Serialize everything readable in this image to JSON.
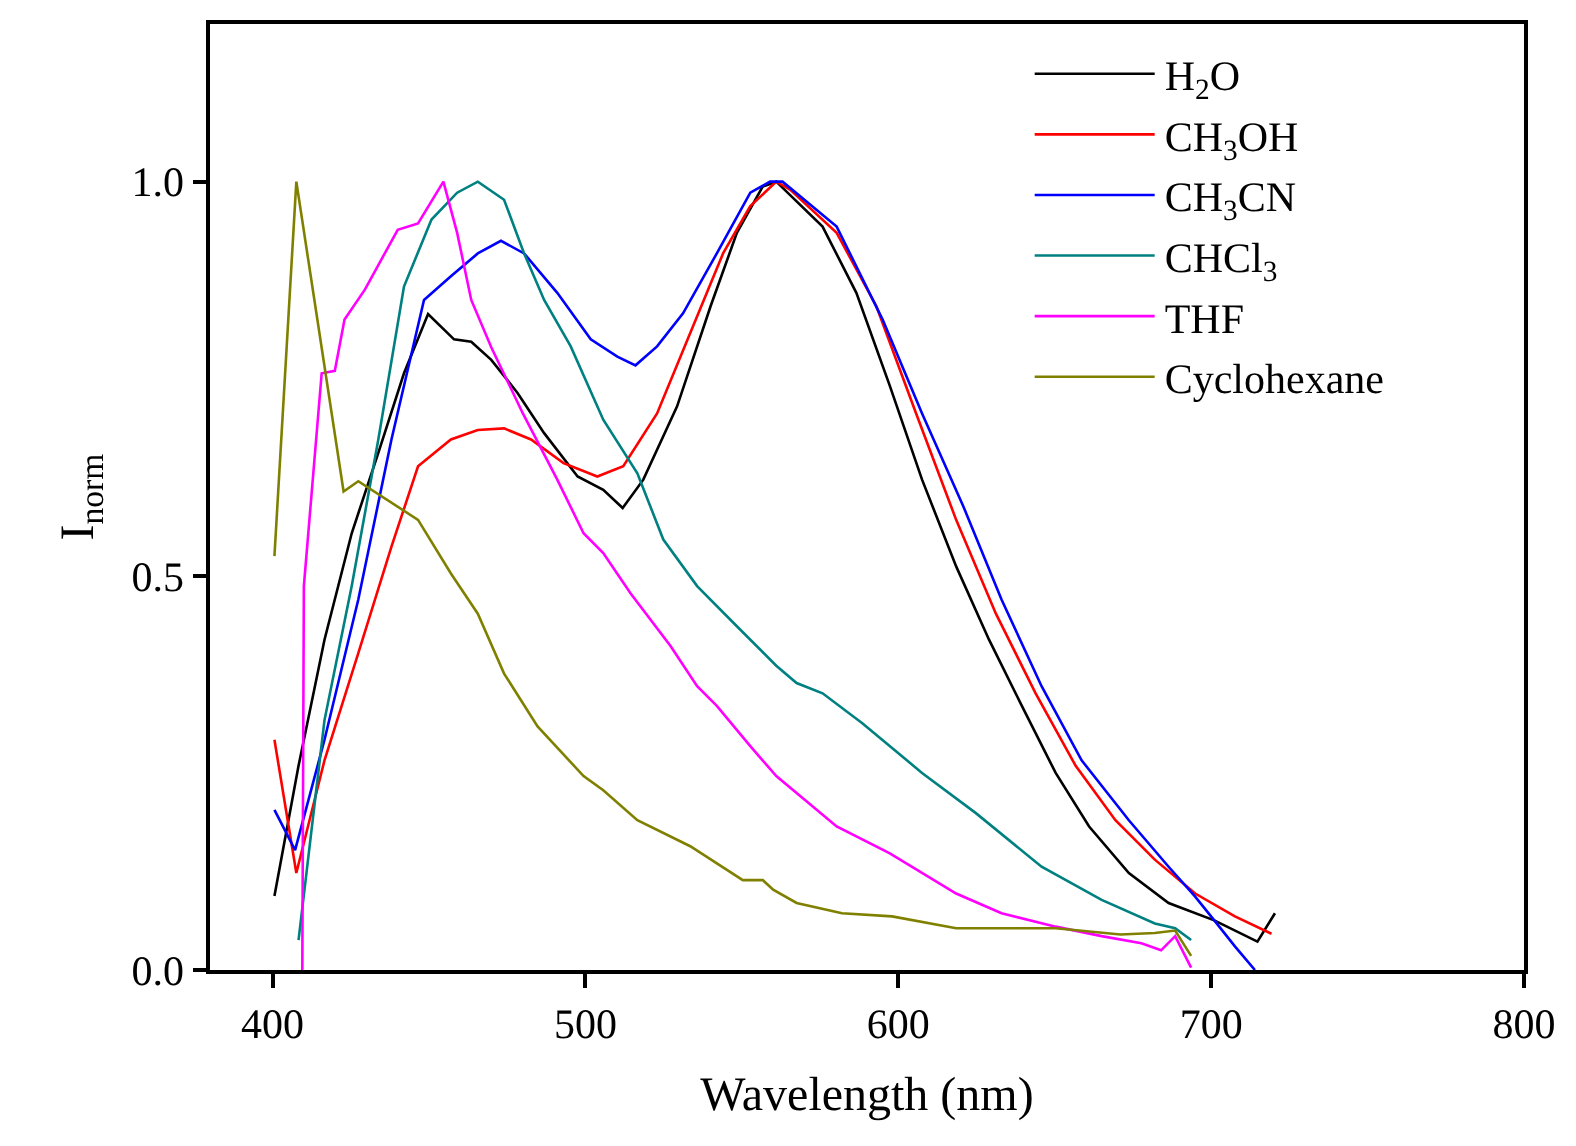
{
  "chart_data": {
    "type": "line",
    "xlabel": "Wavelength (nm)",
    "ylabel": "I$_{norm}$",
    "xlim": [
      380,
      800
    ],
    "xticks": [
      400,
      500,
      600,
      700,
      800
    ],
    "ylim": [
      0,
      1.2
    ],
    "yticks": [
      {
        "value": 0,
        "label": "0.0"
      },
      {
        "value": 0.5,
        "label": "0.5"
      },
      {
        "value": 1,
        "label": "1.0"
      }
    ],
    "grid": false,
    "legend": "top right",
    "marker": "none",
    "line_style": "solid",
    "series": [
      {
        "name": "H$_{2}$O",
        "color": "#000000",
        "x": [
          400.6,
          408.3,
          416.6,
          425.3,
          433.8,
          442,
          449.7,
          458,
          463.5,
          469.9,
          478.3,
          486.8,
          497.5,
          505.7,
          511.9,
          518.5,
          529.3,
          540,
          548.4,
          556.7,
          561,
          575.8,
          586.6,
          597.3,
          607.6,
          618.5,
          629,
          639.5,
          650.3,
          661,
          673.7,
          686.4,
          701,
          714.8,
          720.4
        ],
        "values": [
          0.094,
          0.259,
          0.419,
          0.554,
          0.656,
          0.757,
          0.832,
          0.8,
          0.797,
          0.774,
          0.732,
          0.681,
          0.626,
          0.609,
          0.586,
          0.622,
          0.715,
          0.842,
          0.935,
          0.994,
          1.0,
          0.943,
          0.859,
          0.741,
          0.622,
          0.512,
          0.419,
          0.335,
          0.25,
          0.182,
          0.123,
          0.085,
          0.063,
          0.036,
          0.072
        ]
      },
      {
        "name": "CH$_{3}$OH",
        "color": "#ff0000",
        "x": [
          400.6,
          407.6,
          416.6,
          427.4,
          438,
          446.5,
          457,
          465.6,
          474,
          482.6,
          493,
          503.8,
          512.1,
          522.9,
          533.5,
          544,
          552.7,
          561,
          565.4,
          580.3,
          593,
          605.7,
          618.5,
          631.2,
          643.9,
          656.7,
          669.4,
          682,
          694.9,
          707.6,
          719.3
        ],
        "values": [
          0.292,
          0.123,
          0.266,
          0.402,
          0.537,
          0.639,
          0.673,
          0.685,
          0.687,
          0.673,
          0.643,
          0.626,
          0.639,
          0.706,
          0.808,
          0.909,
          0.969,
          1.0,
          0.99,
          0.935,
          0.842,
          0.706,
          0.571,
          0.452,
          0.351,
          0.259,
          0.19,
          0.14,
          0.097,
          0.068,
          0.046
        ]
      },
      {
        "name": "CH$_{3}$CN",
        "color": "#0000ff",
        "x": [
          400.6,
          407.2,
          416.6,
          427.4,
          438,
          448.4,
          457,
          465.6,
          473,
          480.4,
          491,
          501.7,
          510.2,
          516,
          522.9,
          531.2,
          542,
          552.7,
          559,
          563,
          580.3,
          595,
          607.6,
          620.7,
          633,
          645.8,
          658.6,
          673.7,
          686.4,
          694.9,
          701,
          707.6,
          714
        ],
        "values": [
          0.203,
          0.152,
          0.292,
          0.47,
          0.673,
          0.85,
          0.88,
          0.909,
          0.925,
          0.909,
          0.859,
          0.8,
          0.778,
          0.767,
          0.791,
          0.833,
          0.909,
          0.986,
          1.0,
          1.0,
          0.943,
          0.825,
          0.706,
          0.589,
          0.47,
          0.36,
          0.266,
          0.19,
          0.131,
          0.093,
          0.063,
          0.03,
          0.0
        ]
      },
      {
        "name": "CHCl$_{3}$",
        "color": "#008080",
        "x": [
          408.3,
          416.6,
          425.3,
          433.8,
          442,
          450.8,
          459,
          465.6,
          474,
          480.4,
          486.8,
          495.3,
          505.7,
          516.6,
          524.9,
          535.7,
          548.4,
          561,
          567.5,
          575.8,
          588.5,
          607.6,
          624.8,
          645.8,
          665,
          682,
          688.5,
          693.6
        ],
        "values": [
          0.038,
          0.317,
          0.487,
          0.673,
          0.867,
          0.952,
          0.986,
          1.0,
          0.977,
          0.909,
          0.85,
          0.791,
          0.698,
          0.63,
          0.546,
          0.487,
          0.436,
          0.386,
          0.364,
          0.351,
          0.313,
          0.25,
          0.199,
          0.131,
          0.089,
          0.059,
          0.053,
          0.038
        ]
      },
      {
        "name": "THF",
        "color": "#ff00ff",
        "x": [
          409.5,
          410,
          415.7,
          419.9,
          423,
          429.5,
          440,
          446.5,
          454.6,
          459,
          463.5,
          469.9,
          480,
          491,
          499.4,
          505.7,
          514.4,
          527.2,
          535.7,
          542,
          552.7,
          561,
          580.3,
          597.3,
          618.5,
          633,
          650.3,
          665,
          677.7,
          684,
          688.5,
          693.6
        ],
        "values": [
          0.0,
          0.487,
          0.757,
          0.76,
          0.825,
          0.863,
          0.939,
          0.947,
          1.0,
          0.935,
          0.85,
          0.79,
          0.706,
          0.622,
          0.554,
          0.529,
          0.478,
          0.411,
          0.36,
          0.335,
          0.284,
          0.246,
          0.182,
          0.148,
          0.097,
          0.072,
          0.055,
          0.043,
          0.034,
          0.025,
          0.043,
          0.003
        ]
      },
      {
        "name": "Cyclohexane",
        "color": "#808000",
        "x": [
          400.6,
          407.6,
          422.7,
          427.4,
          446.5,
          457,
          465.6,
          474,
          484.7,
          499.4,
          505.7,
          516.6,
          533.5,
          550.3,
          556.7,
          560,
          567.5,
          582,
          598,
          618.5,
          650.3,
          671,
          682,
          688.5,
          693.6
        ],
        "values": [
          0.525,
          1.0,
          0.607,
          0.62,
          0.571,
          0.503,
          0.452,
          0.376,
          0.309,
          0.246,
          0.228,
          0.19,
          0.157,
          0.114,
          0.114,
          0.102,
          0.085,
          0.072,
          0.068,
          0.053,
          0.053,
          0.045,
          0.047,
          0.05,
          0.018
        ]
      }
    ]
  }
}
